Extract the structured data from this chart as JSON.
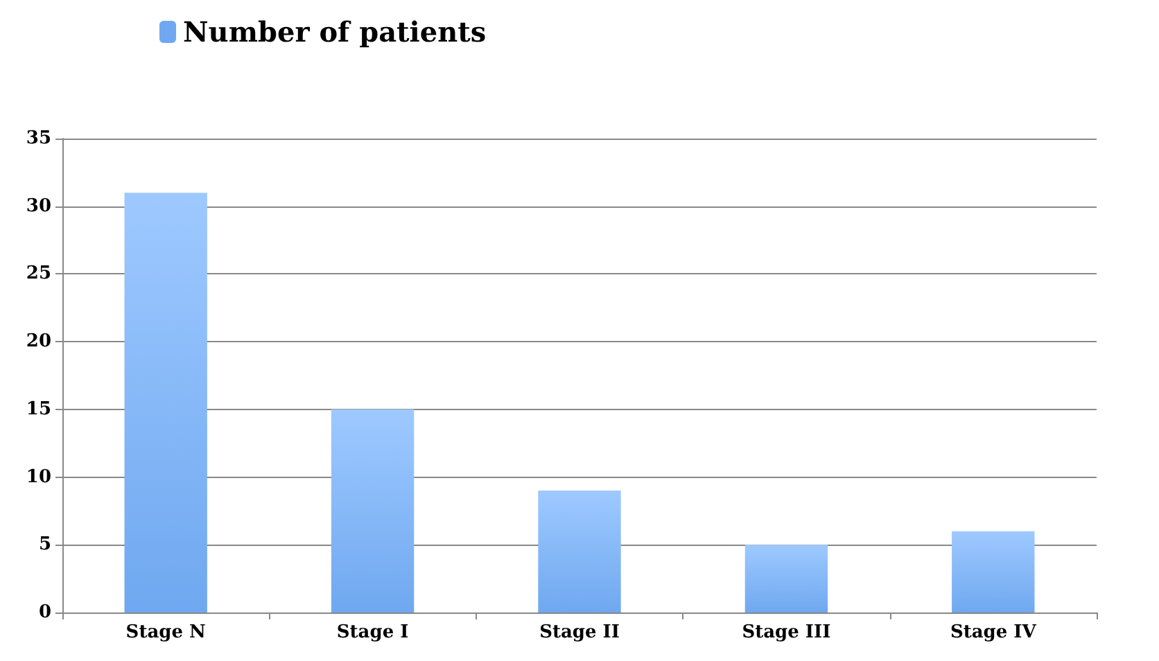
{
  "chart_data": {
    "type": "bar",
    "categories": [
      "Stage N",
      "Stage I",
      "Stage II",
      "Stage III",
      "Stage IV"
    ],
    "series": [
      {
        "name": "Number of patients",
        "color": "#6fa8f0",
        "values": [
          31,
          15,
          9,
          5,
          6
        ]
      }
    ],
    "ylim": [
      0,
      35
    ],
    "yticks": [
      0,
      5,
      10,
      15,
      20,
      25,
      30,
      35
    ],
    "grid": "y",
    "legend": "top left"
  }
}
